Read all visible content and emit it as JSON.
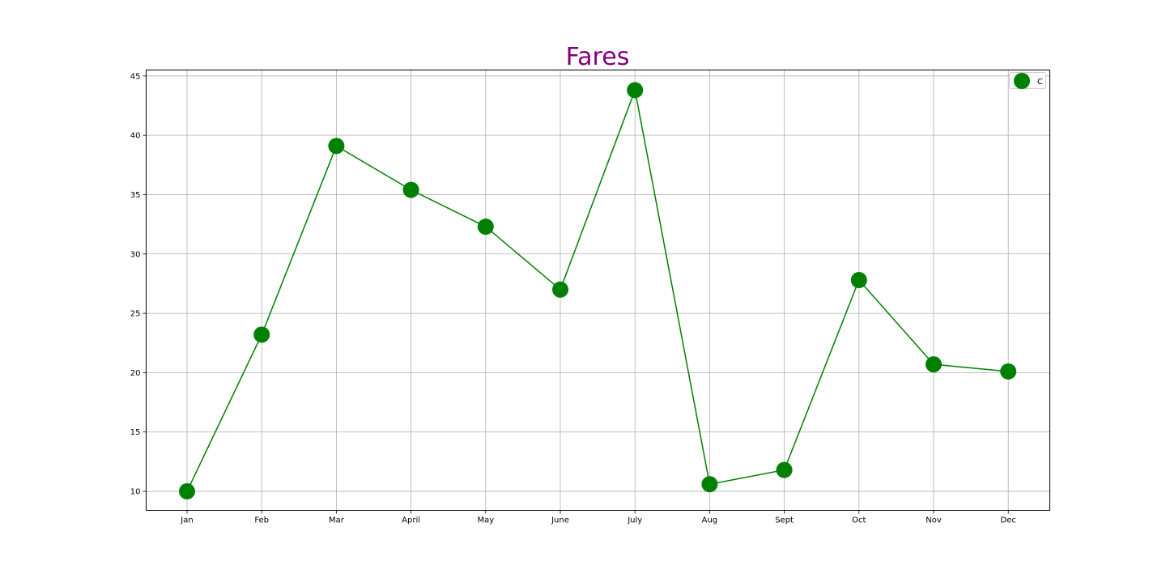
{
  "chart_data": {
    "type": "line",
    "title": "Fares",
    "categories": [
      "Jan",
      "Feb",
      "Mar",
      "April",
      "May",
      "June",
      "July",
      "Aug",
      "Sept",
      "Oct",
      "Nov",
      "Dec"
    ],
    "series": [
      {
        "name": "C",
        "values": [
          10.0,
          23.2,
          39.1,
          35.4,
          32.3,
          27.0,
          43.8,
          10.6,
          11.8,
          27.8,
          20.7,
          20.1
        ]
      }
    ],
    "ylim": [
      8.4,
      45.5
    ],
    "yticks": [
      10,
      15,
      20,
      25,
      30,
      35,
      40,
      45
    ],
    "xlabel": "",
    "ylabel": "",
    "grid": true,
    "legend_position": "top-right",
    "colors": {
      "line": "#008000",
      "marker": "#008000",
      "title": "#800080",
      "grid": "#b0b0b0",
      "axes": "#000000"
    }
  }
}
